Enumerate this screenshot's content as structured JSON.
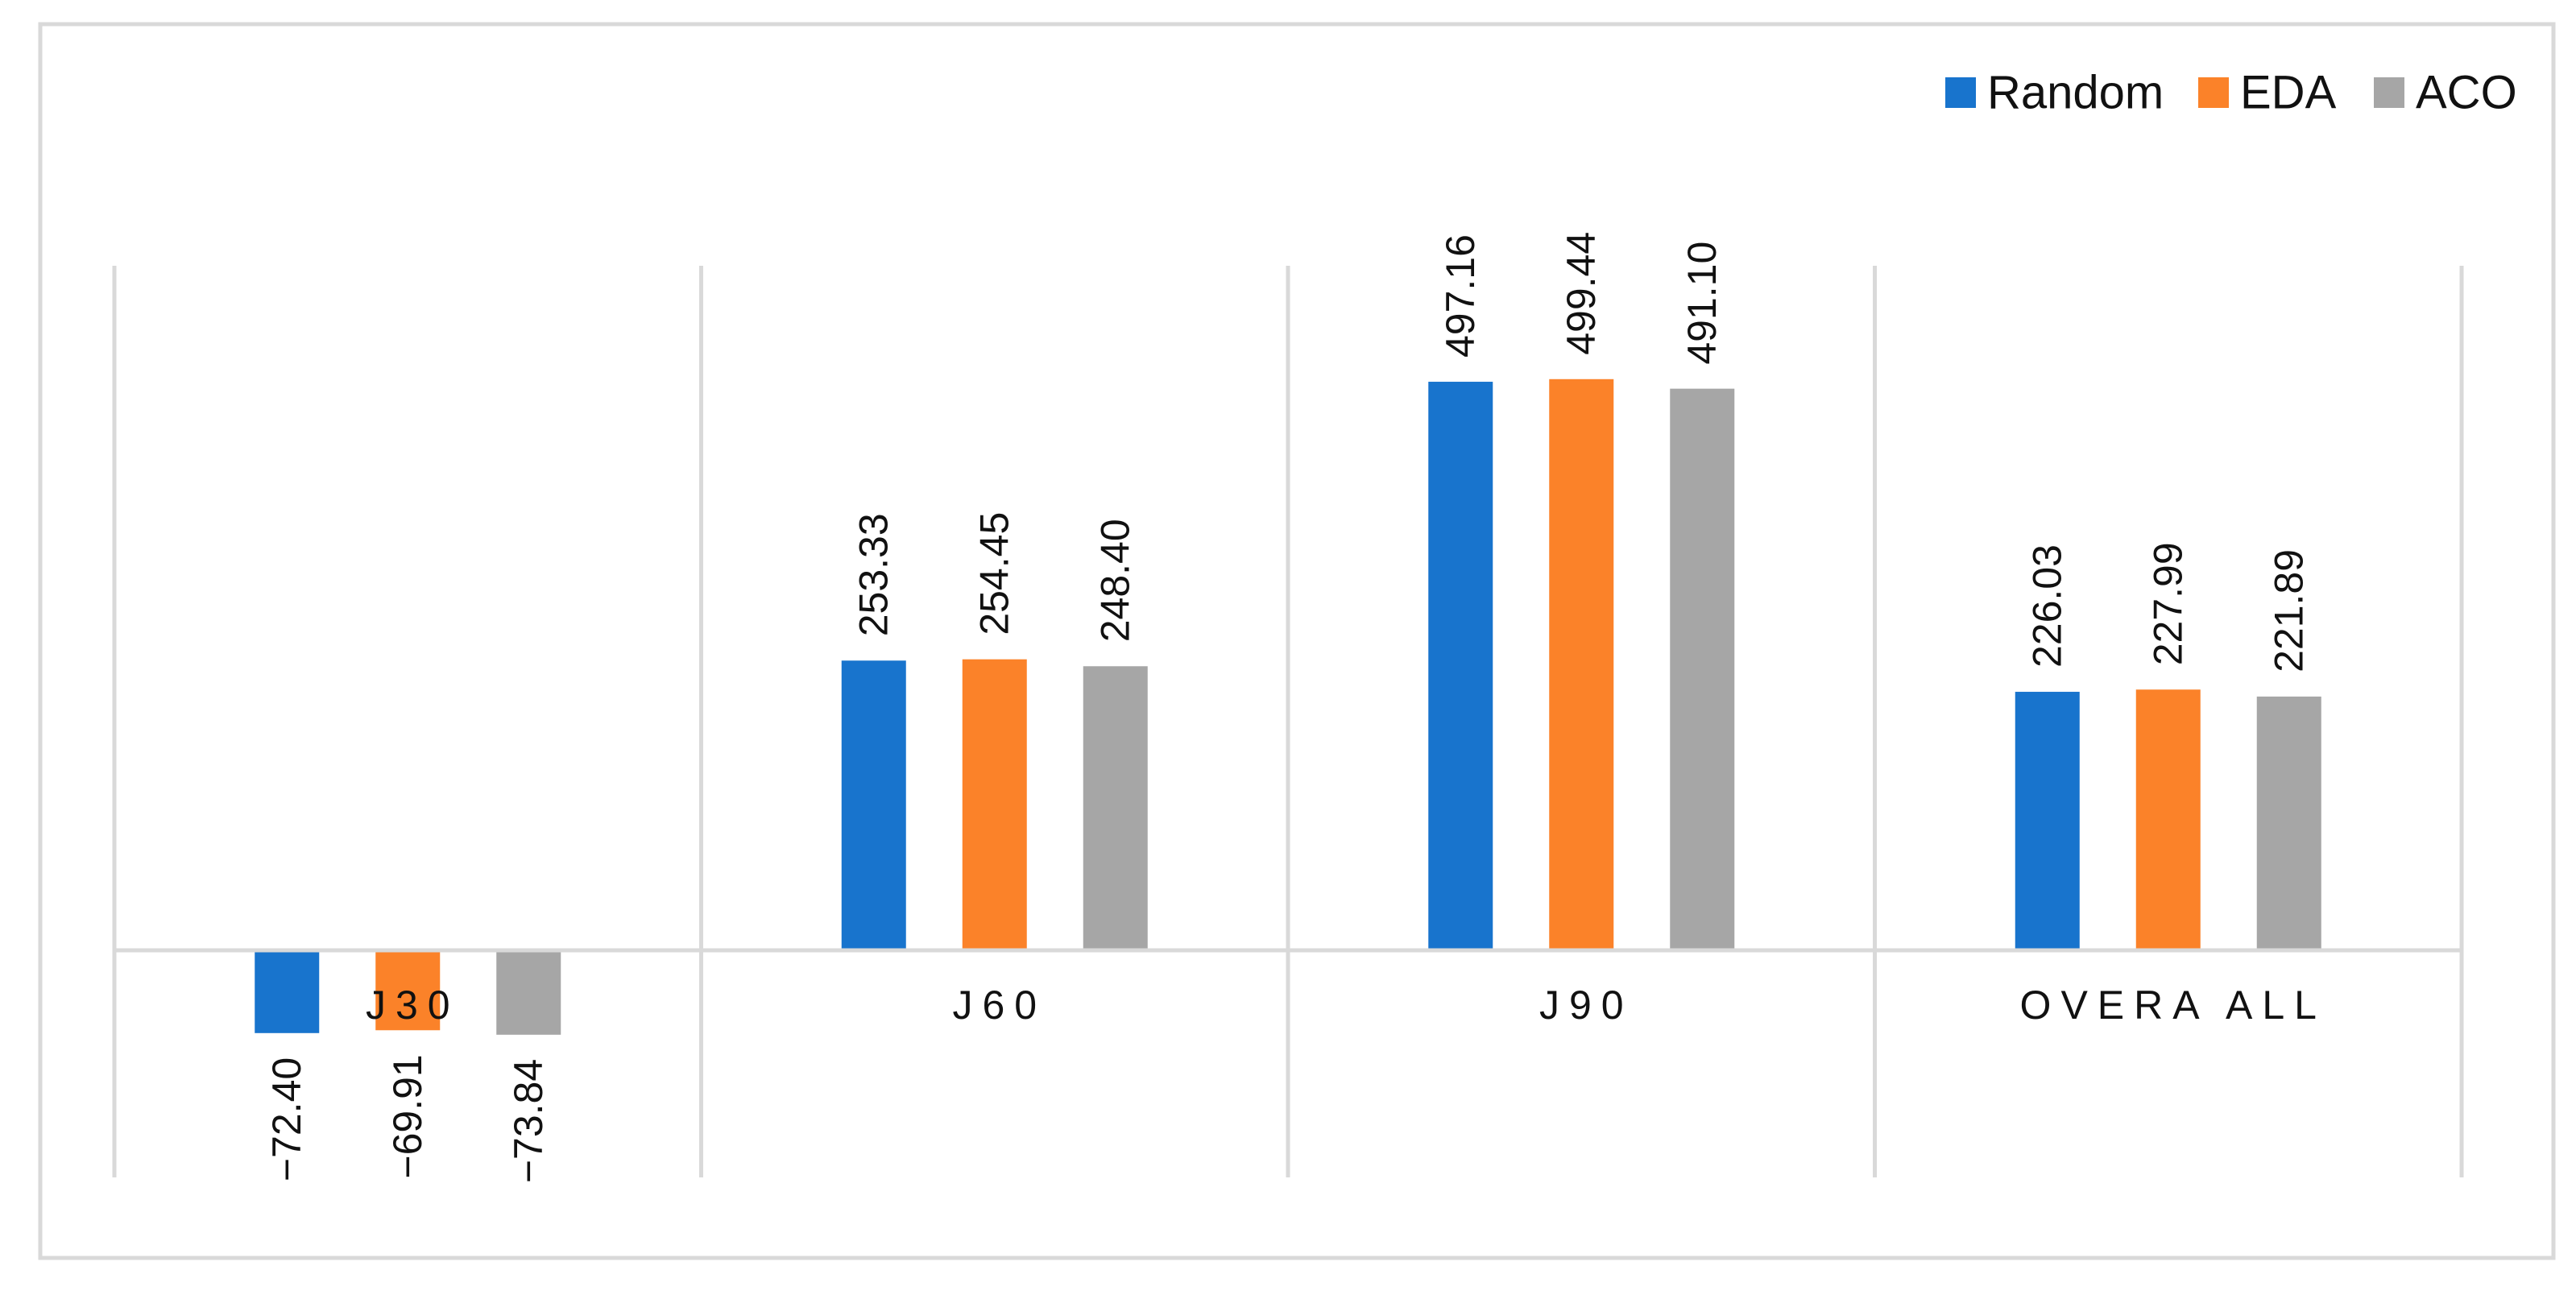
{
  "chart_data": {
    "type": "bar",
    "title": "",
    "xlabel": "",
    "ylabel": "",
    "categories": [
      "J30",
      "J60",
      "J90",
      "OVERA ALL"
    ],
    "series": [
      {
        "name": "Random",
        "color": "#1874cd",
        "values": [
          -72.4,
          253.33,
          497.16,
          226.03
        ],
        "labels": [
          "−72.40",
          "253.33",
          "497.16",
          "226.03"
        ]
      },
      {
        "name": "EDA",
        "color": "#fb8229",
        "values": [
          -69.91,
          254.45,
          499.44,
          227.99
        ],
        "labels": [
          "−69.91",
          "254.45",
          "499.44",
          "227.99"
        ]
      },
      {
        "name": "ACO",
        "color": "#a6a6a6",
        "values": [
          -73.84,
          248.4,
          491.1,
          221.89
        ],
        "labels": [
          "−73.84",
          "248.40",
          "491.10",
          "221.89"
        ]
      }
    ],
    "ylim": [
      -200,
      600
    ],
    "grid": "vertical-category-separators",
    "legend_position": "top-right",
    "data_labels": "rotated-90"
  }
}
